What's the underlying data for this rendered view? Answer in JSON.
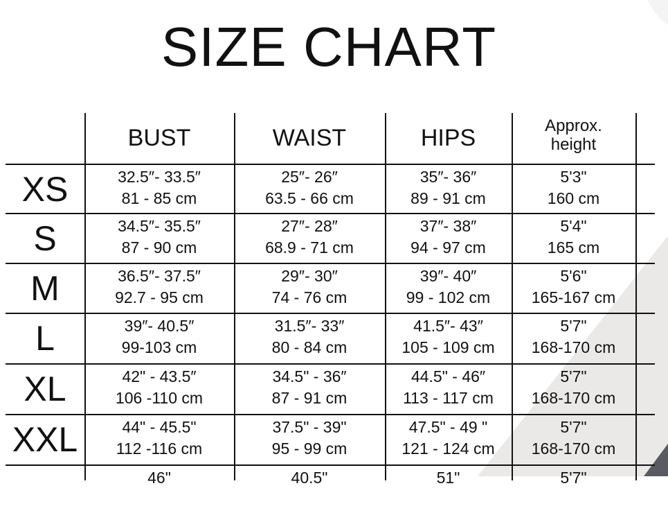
{
  "title": "SIZE CHART",
  "headers": [
    "BUST",
    "WAIST",
    "HIPS",
    "Approx.\nheight"
  ],
  "header_approx": "Approx.",
  "header_height": "height",
  "rows": [
    {
      "size": "XS",
      "bust": [
        "32.5″- 33.5″",
        "81 - 85 cm"
      ],
      "waist": [
        "25″- 26″",
        "63.5 - 66 cm"
      ],
      "hips": [
        "35″- 36″",
        "89 - 91 cm"
      ],
      "height": [
        "5'3\"",
        "160 cm"
      ]
    },
    {
      "size": "S",
      "bust": [
        "34.5″- 35.5″",
        "87 - 90 cm"
      ],
      "waist": [
        "27″- 28″",
        "68.9 - 71 cm"
      ],
      "hips": [
        "37″- 38″",
        "94 - 97 cm"
      ],
      "height": [
        "5'4\"",
        "165 cm"
      ]
    },
    {
      "size": "M",
      "bust": [
        "36.5″- 37.5″",
        "92.7 - 95 cm"
      ],
      "waist": [
        "29″- 30″",
        "74 - 76 cm"
      ],
      "hips": [
        "39″- 40″",
        "99 - 102 cm"
      ],
      "height": [
        "5'6\"",
        "165-167 cm"
      ]
    },
    {
      "size": "L",
      "bust": [
        "39″- 40.5″",
        "99-103 cm"
      ],
      "waist": [
        "31.5″- 33″",
        "80 - 84 cm"
      ],
      "hips": [
        "41.5″- 43″",
        "105 - 109 cm"
      ],
      "height": [
        "5'7\"",
        "168-170 cm"
      ]
    },
    {
      "size": "XL",
      "bust": [
        "42\" - 43.5″",
        "106 -110 cm"
      ],
      "waist": [
        "34.5\" - 36″",
        "87 - 91 cm"
      ],
      "hips": [
        "44.5\" - 46″",
        "113 - 117 cm"
      ],
      "height": [
        "5'7\"",
        "168-170 cm"
      ]
    },
    {
      "size": "XXL",
      "bust": [
        "44\" - 45.5\"",
        "112 -116 cm"
      ],
      "waist": [
        "37.5\" - 39\"",
        "95 - 99 cm"
      ],
      "hips": [
        "47.5\" - 49 \"",
        "121 - 124 cm"
      ],
      "height": [
        "5'7\"",
        "168-170 cm"
      ]
    },
    {
      "size": "",
      "bust": [
        "46\"",
        ""
      ],
      "waist": [
        "40.5\"",
        ""
      ],
      "hips": [
        "51\"",
        ""
      ],
      "height": [
        "5'7\"",
        ""
      ]
    }
  ],
  "colors": {
    "background": "#ffffff",
    "accent_gray": "#e9e7e6",
    "dark_gray": "#55555c"
  }
}
